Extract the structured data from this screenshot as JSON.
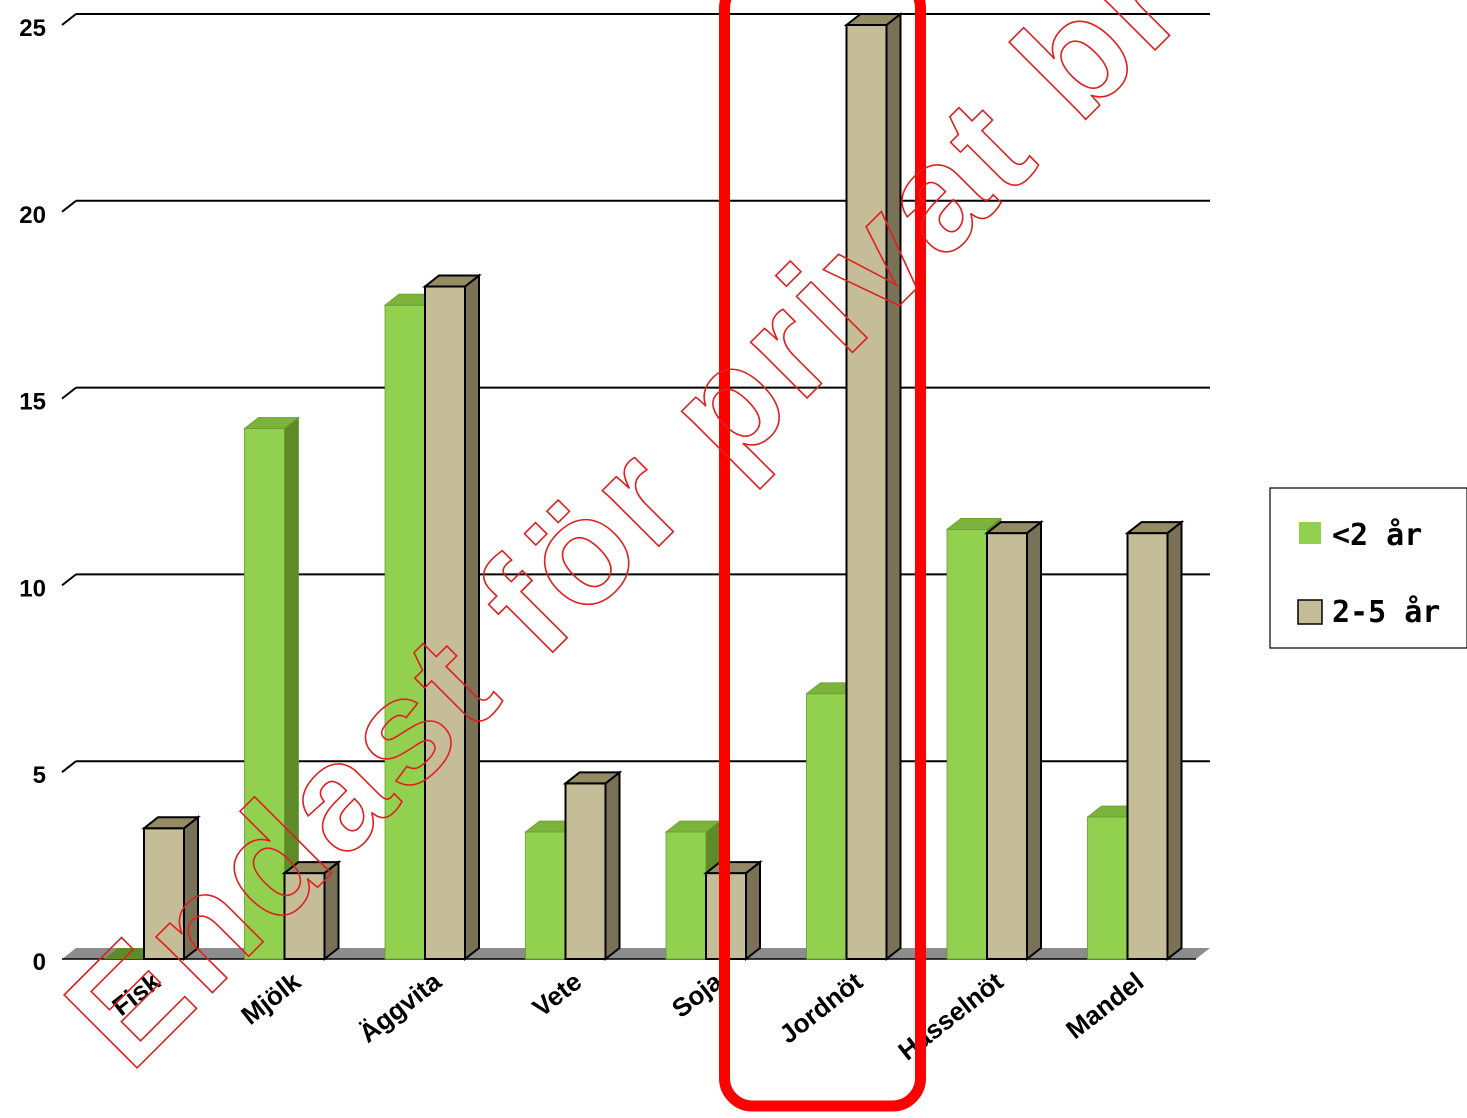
{
  "chart_data": {
    "type": "bar",
    "categories": [
      "Fisk",
      "Mjölk",
      "Äggvita",
      "Vete",
      "Soja",
      "Jordnöt",
      "Hasselnöt",
      "Mandel"
    ],
    "series": [
      {
        "name": "<2 år",
        "values": [
          0,
          14.2,
          17.5,
          3.4,
          3.4,
          7.1,
          11.5,
          3.8
        ]
      },
      {
        "name": "2-5 år",
        "values": [
          3.5,
          2.3,
          18.0,
          4.7,
          2.3,
          25.0,
          11.4,
          11.4
        ]
      }
    ],
    "yticks": [
      0,
      5,
      10,
      15,
      20,
      25
    ],
    "ylim": [
      0,
      25
    ],
    "grid": true,
    "legend_position": "right",
    "highlighted_category": "Jordnöt",
    "colors": {
      "series1": "#92d050",
      "series1_side": "#5e8a2a",
      "series1_top": "#7bb33c",
      "series2": "#c4bd97",
      "series2_side": "#7a7256",
      "series2_top": "#948a63",
      "highlight": "#ff0000",
      "watermark": "#e02020"
    },
    "watermark_text": "Endast för privat bruk"
  }
}
